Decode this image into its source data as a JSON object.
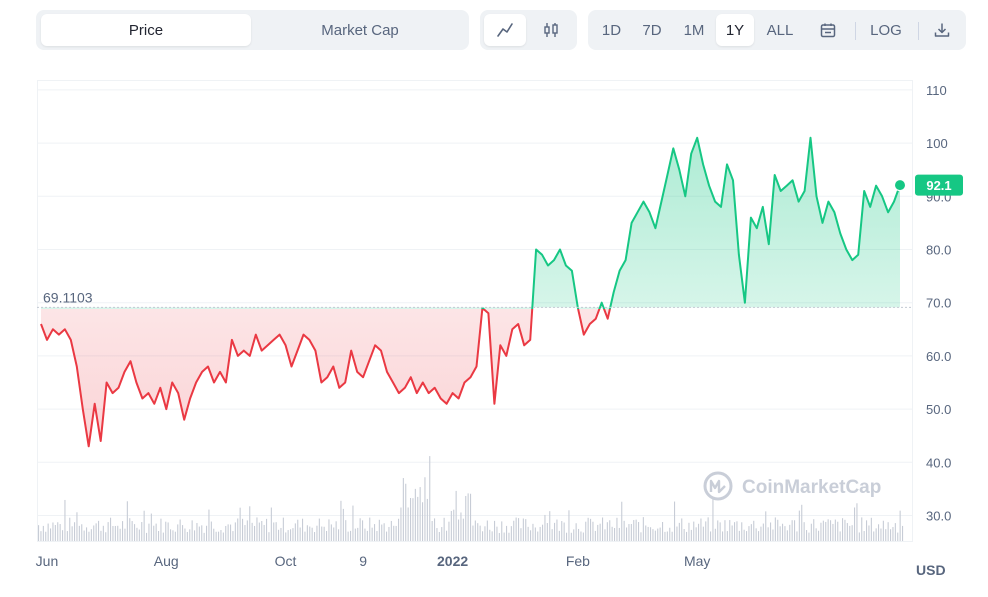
{
  "toolbar": {
    "price_tab": "Price",
    "market_cap_tab": "Market Cap",
    "line_icon": "line-chart-icon",
    "candle_icon": "candlestick-icon",
    "ranges": [
      "1D",
      "7D",
      "1M",
      "1Y",
      "ALL"
    ],
    "active_range": "1Y",
    "calendar_icon": "calendar-icon",
    "log_label": "LOG",
    "download_icon": "download-icon"
  },
  "currency_label": "USD",
  "watermark": "CoinMarketCap",
  "colors": {
    "up": "#16c784",
    "down": "#ea3943",
    "grid": "#eff2f5",
    "badge": "#16c784"
  },
  "chart_data": {
    "type": "line",
    "title": "",
    "xlabel": "",
    "ylabel": "",
    "ylim": [
      25,
      112
    ],
    "y_ticks": [
      "110",
      "100",
      "90.0",
      "80.0",
      "70.0",
      "60.0",
      "50.0",
      "40.0",
      "30.0"
    ],
    "x_ticks": [
      {
        "label": "Jun",
        "bold": false
      },
      {
        "label": "Aug",
        "bold": false
      },
      {
        "label": "Oct",
        "bold": false
      },
      {
        "label": "9",
        "bold": false
      },
      {
        "label": "2022",
        "bold": true
      },
      {
        "label": "Feb",
        "bold": false
      },
      {
        "label": "May",
        "bold": false
      }
    ],
    "reference_value": 69.1103,
    "reference_label": "69.1103",
    "current_value": 92.1,
    "current_label": "92.1",
    "x_tick_index": [
      1,
      21,
      41,
      54,
      69,
      90,
      110
    ],
    "series": [
      {
        "values": [
          66,
          63,
          65,
          64,
          65,
          63,
          58,
          50,
          43,
          51,
          44,
          55,
          53,
          54,
          57,
          59,
          55,
          52,
          53,
          51,
          54,
          50,
          55,
          53,
          48,
          52,
          55,
          57,
          58,
          55,
          57,
          55,
          63,
          60,
          61,
          60,
          64,
          61,
          62,
          63,
          64,
          62,
          58,
          61,
          64,
          63,
          61,
          55,
          56,
          58,
          54,
          55,
          61,
          57,
          56,
          59,
          62,
          61,
          57,
          55,
          53,
          54,
          56,
          53,
          55,
          53,
          54,
          52,
          51,
          53,
          52,
          55,
          56,
          58,
          69,
          68,
          51,
          62,
          60,
          65,
          66,
          62,
          63,
          80,
          79,
          77,
          78,
          80,
          77,
          76,
          69,
          64,
          66,
          67,
          70,
          67,
          72,
          76,
          78,
          85,
          87,
          89,
          87,
          84,
          89,
          94,
          99,
          95,
          90,
          98,
          101,
          96,
          92,
          89,
          88,
          96,
          93,
          79,
          70,
          86,
          84,
          88,
          81,
          94,
          91,
          92,
          93,
          89,
          91,
          101,
          90,
          85,
          89,
          87,
          83,
          80,
          78,
          79,
          91,
          88,
          92,
          90,
          87,
          89,
          92.1
        ]
      }
    ]
  }
}
